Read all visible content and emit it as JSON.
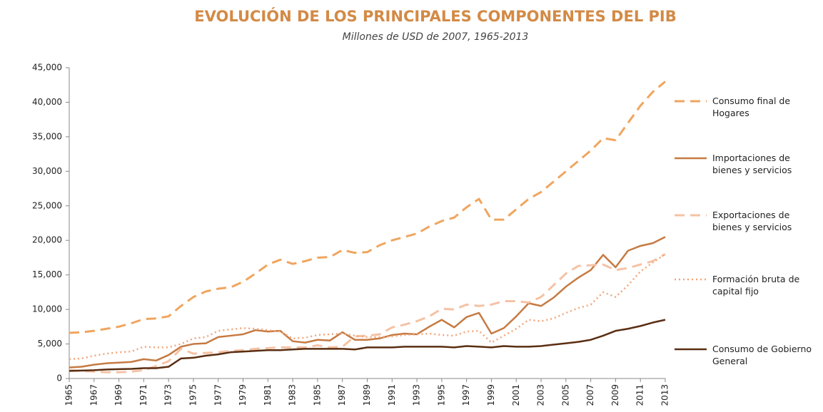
{
  "chart_data": {
    "type": "line",
    "title": "EVOLUCIÓN DE LOS PRINCIPALES COMPONENTES DEL PIB",
    "subtitle": "Millones de USD de 2007, 1965-2013",
    "title_color": "#d38a45",
    "x": [
      1965,
      1966,
      1967,
      1968,
      1969,
      1970,
      1971,
      1972,
      1973,
      1974,
      1975,
      1976,
      1977,
      1978,
      1979,
      1980,
      1981,
      1982,
      1983,
      1984,
      1985,
      1986,
      1987,
      1988,
      1989,
      1990,
      1991,
      1992,
      1993,
      1994,
      1995,
      1996,
      1997,
      1998,
      1999,
      2000,
      2001,
      2002,
      2003,
      2004,
      2005,
      2006,
      2007,
      2008,
      2009,
      2010,
      2011,
      2012,
      2013
    ],
    "xlim": [
      1965,
      2013
    ],
    "xticks": [
      1965,
      1967,
      1969,
      1971,
      1973,
      1975,
      1977,
      1979,
      1981,
      1983,
      1985,
      1987,
      1989,
      1991,
      1993,
      1995,
      1997,
      1999,
      2001,
      2003,
      2005,
      2007,
      2009,
      2011,
      2013
    ],
    "ylim": [
      0,
      45000
    ],
    "yticks": [
      0,
      {
        "value": 5000,
        "label": "5,000"
      },
      {
        "value": 10000,
        "label": "10,000"
      },
      {
        "value": 15000,
        "label": "15,000"
      },
      {
        "value": 20000,
        "label": "20,000"
      },
      {
        "value": 25000,
        "label": "25,000"
      },
      {
        "value": 30000,
        "label": "30,000"
      },
      {
        "value": 35000,
        "label": "35,000"
      },
      {
        "value": 40000,
        "label": "40,000"
      },
      {
        "value": 45000,
        "label": "45,000"
      }
    ],
    "grid": false,
    "legend": "right",
    "series": [
      {
        "name": "Consumo final de Hogares",
        "color": "#f0a55e",
        "dash": "dashed",
        "values": [
          6600,
          6700,
          6900,
          7200,
          7500,
          8000,
          8600,
          8700,
          9000,
          10500,
          11800,
          12600,
          13000,
          13200,
          14000,
          15200,
          16500,
          17200,
          16600,
          17000,
          17500,
          17600,
          18600,
          18200,
          18300,
          19300,
          20000,
          20500,
          21000,
          22000,
          22800,
          23300,
          24800,
          26000,
          23000,
          23000,
          24500,
          26000,
          27000,
          28500,
          30000,
          31500,
          33000,
          34800,
          34500,
          37000,
          39500,
          41500,
          43000
        ]
      },
      {
        "name": "Importaciones de bienes y servicios",
        "color": "#c57a42",
        "dash": "solid",
        "values": [
          1600,
          1700,
          2000,
          2200,
          2300,
          2400,
          2800,
          2600,
          3400,
          4600,
          5000,
          5100,
          6000,
          6200,
          6400,
          7000,
          6800,
          6900,
          5400,
          5200,
          5600,
          5500,
          6700,
          5600,
          5600,
          5800,
          6300,
          6500,
          6400,
          7500,
          8500,
          7400,
          8900,
          9500,
          6500,
          7300,
          9000,
          10900,
          10500,
          11700,
          13300,
          14600,
          15700,
          17900,
          16100,
          18500,
          19200,
          19600,
          20500
        ]
      },
      {
        "name": "Exportaciones de bienes y servicios",
        "color": "#f5c2a5",
        "dash": "dashed",
        "values": [
          1200,
          1100,
          1000,
          900,
          900,
          1000,
          1200,
          1800,
          2500,
          4300,
          3600,
          3700,
          3800,
          4000,
          4100,
          4300,
          4400,
          4500,
          4500,
          4500,
          4800,
          4500,
          4600,
          6100,
          6200,
          6400,
          7400,
          7800,
          8300,
          9000,
          10100,
          10000,
          10700,
          10500,
          10700,
          11200,
          11200,
          11000,
          11800,
          13500,
          15200,
          16300,
          16400,
          16500,
          15700,
          16000,
          16500,
          17000,
          18000
        ]
      },
      {
        "name": "Formación bruta de capital fijo",
        "color": "#f2a67a",
        "dash": "dotted",
        "values": [
          2800,
          2900,
          3300,
          3600,
          3800,
          3900,
          4600,
          4500,
          4500,
          5000,
          5800,
          6000,
          6900,
          7100,
          7300,
          7200,
          7000,
          6800,
          5800,
          5900,
          6300,
          6400,
          6500,
          6200,
          6000,
          6000,
          6100,
          6300,
          6400,
          6500,
          6300,
          6200,
          6800,
          6900,
          5200,
          6200,
          7200,
          8500,
          8300,
          8700,
          9500,
          10200,
          10700,
          12500,
          11800,
          13500,
          15500,
          16800,
          18000
        ]
      },
      {
        "name": "Consumo de Gobierno General",
        "color": "#5a2e12",
        "dash": "solid",
        "values": [
          1100,
          1150,
          1200,
          1300,
          1350,
          1400,
          1500,
          1500,
          1700,
          2900,
          3000,
          3300,
          3500,
          3800,
          3900,
          4000,
          4100,
          4100,
          4200,
          4300,
          4300,
          4300,
          4300,
          4200,
          4500,
          4500,
          4500,
          4600,
          4600,
          4600,
          4600,
          4500,
          4700,
          4600,
          4500,
          4700,
          4600,
          4600,
          4700,
          4900,
          5100,
          5300,
          5600,
          6200,
          6900,
          7200,
          7600,
          8100,
          8500
        ]
      }
    ]
  }
}
